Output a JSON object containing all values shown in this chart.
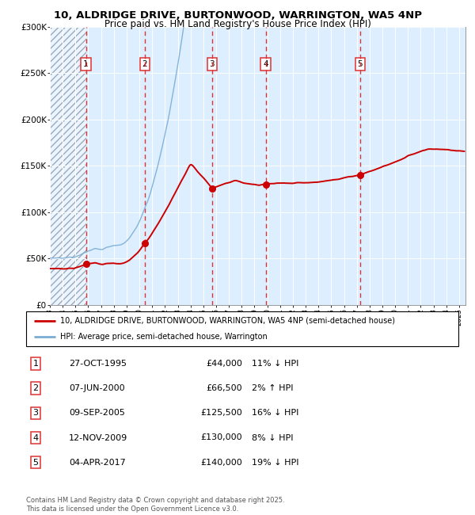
{
  "title_line1": "10, ALDRIDGE DRIVE, BURTONWOOD, WARRINGTON, WA5 4NP",
  "title_line2": "Price paid vs. HM Land Registry's House Price Index (HPI)",
  "ylabel_vals": [
    0,
    50000,
    100000,
    150000,
    200000,
    250000,
    300000
  ],
  "ylabel_strs": [
    "£0",
    "£50K",
    "£100K",
    "£150K",
    "£200K",
    "£250K",
    "£300K"
  ],
  "sale_dates": [
    1995.82,
    2000.43,
    2005.68,
    2009.87,
    2017.25
  ],
  "sale_prices": [
    44000,
    66500,
    125500,
    130000,
    140000
  ],
  "sale_labels": [
    "1",
    "2",
    "3",
    "4",
    "5"
  ],
  "legend_red": "10, ALDRIDGE DRIVE, BURTONWOOD, WARRINGTON, WA5 4NP (semi-detached house)",
  "legend_blue": "HPI: Average price, semi-detached house, Warrington",
  "table_rows": [
    [
      "1",
      "27-OCT-1995",
      "£44,000",
      "11% ↓ HPI"
    ],
    [
      "2",
      "07-JUN-2000",
      "£66,500",
      "2% ↑ HPI"
    ],
    [
      "3",
      "09-SEP-2005",
      "£125,500",
      "16% ↓ HPI"
    ],
    [
      "4",
      "12-NOV-2009",
      "£130,000",
      "8% ↓ HPI"
    ],
    [
      "5",
      "04-APR-2017",
      "£140,000",
      "19% ↓ HPI"
    ]
  ],
  "footer": "Contains HM Land Registry data © Crown copyright and database right 2025.\nThis data is licensed under the Open Government Licence v3.0.",
  "hatch_end_year": 1995.82,
  "xmin": 1993.0,
  "xmax": 2025.5,
  "ymin": 0,
  "ymax": 300000,
  "red_color": "#cc0000",
  "blue_color": "#7aadd4",
  "bg_color": "#ddeeff",
  "hatch_color": "#aabbcc",
  "dashed_color": "#dd3333"
}
